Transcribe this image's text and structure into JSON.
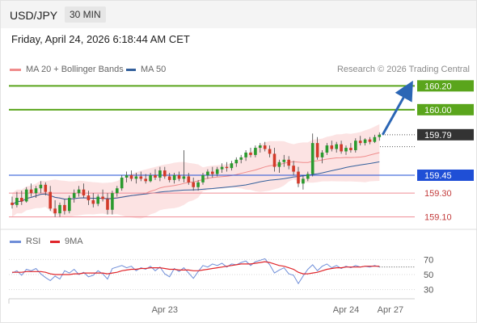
{
  "header": {
    "instrument": "USD/JPY",
    "timeframe": "30 MIN",
    "datetime": "Friday, April 24, 2026 6:18:44 AM CET"
  },
  "legend": {
    "ma20": "MA 20 + Bollinger Bands",
    "ma50": "MA 50",
    "rsi": "RSI",
    "rsi_ma": "9MA"
  },
  "credit": "Research © 2026 Trading Central",
  "colors": {
    "resistance": "#5aa51c",
    "support_blue": "#1f4fd6",
    "support_pink": "#ef8c94",
    "support_pink_text": "#c23a3a",
    "current_price_box": "#333333",
    "arrow": "#2b66b5",
    "ma20_band": "#f6a9a9",
    "ma50": "#34609c",
    "candle_up": "#2a9a2e",
    "candle_down": "#d23a2a",
    "rsi_line": "#6f8ed8",
    "rsi_ma_line": "#e0262b"
  },
  "chart_data": {
    "type": "candlestick",
    "ylim": [
      159.05,
      160.27
    ],
    "levels": [
      {
        "name": "resistance-2",
        "value": 160.2,
        "label": "160.20",
        "kind": "resistance"
      },
      {
        "name": "resistance-1",
        "value": 160.0,
        "label": "160.00",
        "kind": "resistance"
      },
      {
        "name": "current",
        "value": 159.79,
        "label": "159.79",
        "kind": "current"
      },
      {
        "name": "pivot",
        "value": 159.45,
        "label": "159.45",
        "kind": "pivot"
      },
      {
        "name": "support-1",
        "value": 159.3,
        "label": "159.30",
        "kind": "support"
      },
      {
        "name": "support-2",
        "value": 159.1,
        "label": "159.10",
        "kind": "support"
      }
    ],
    "x_ticks": [
      "Apr 23",
      "Apr 24",
      "Apr 27"
    ],
    "candles": [
      [
        159.22,
        159.27,
        159.17,
        159.2
      ],
      [
        159.2,
        159.31,
        159.18,
        159.26
      ],
      [
        159.26,
        159.32,
        159.2,
        159.23
      ],
      [
        159.23,
        159.35,
        159.22,
        159.33
      ],
      [
        159.33,
        159.38,
        159.27,
        159.3
      ],
      [
        159.3,
        159.36,
        159.26,
        159.34
      ],
      [
        159.34,
        159.4,
        159.3,
        159.37
      ],
      [
        159.37,
        159.39,
        159.28,
        159.31
      ],
      [
        159.31,
        159.36,
        159.15,
        159.17
      ],
      [
        159.17,
        159.24,
        159.1,
        159.13
      ],
      [
        159.13,
        159.22,
        159.1,
        159.2
      ],
      [
        159.2,
        159.25,
        159.12,
        159.15
      ],
      [
        159.15,
        159.28,
        159.13,
        159.26
      ],
      [
        159.26,
        159.33,
        159.22,
        159.3
      ],
      [
        159.3,
        159.36,
        159.27,
        159.33
      ],
      [
        159.33,
        159.38,
        159.26,
        159.28
      ],
      [
        159.28,
        159.32,
        159.2,
        159.24
      ],
      [
        159.24,
        159.3,
        159.18,
        159.21
      ],
      [
        159.21,
        159.29,
        159.19,
        159.27
      ],
      [
        159.27,
        159.33,
        159.23,
        159.25
      ],
      [
        159.25,
        159.3,
        159.12,
        159.16
      ],
      [
        159.16,
        159.32,
        159.12,
        159.3
      ],
      [
        159.3,
        159.36,
        159.27,
        159.34
      ],
      [
        159.34,
        159.45,
        159.32,
        159.43
      ],
      [
        159.43,
        159.48,
        159.39,
        159.45
      ],
      [
        159.45,
        159.49,
        159.4,
        159.42
      ],
      [
        159.42,
        159.47,
        159.38,
        159.44
      ],
      [
        159.44,
        159.48,
        159.4,
        159.42
      ],
      [
        159.42,
        159.46,
        159.38,
        159.4
      ],
      [
        159.4,
        159.47,
        159.39,
        159.45
      ],
      [
        159.45,
        159.5,
        159.41,
        159.43
      ],
      [
        159.43,
        159.52,
        159.4,
        159.49
      ],
      [
        159.49,
        159.52,
        159.42,
        159.44
      ],
      [
        159.44,
        159.47,
        159.39,
        159.41
      ],
      [
        159.41,
        159.47,
        159.38,
        159.45
      ],
      [
        159.45,
        159.48,
        159.4,
        159.42
      ],
      [
        159.42,
        159.66,
        159.39,
        159.44
      ],
      [
        159.44,
        159.47,
        159.37,
        159.39
      ],
      [
        159.39,
        159.43,
        159.32,
        159.35
      ],
      [
        159.35,
        159.41,
        159.32,
        159.39
      ],
      [
        159.39,
        159.47,
        159.37,
        159.45
      ],
      [
        159.45,
        159.5,
        159.42,
        159.48
      ],
      [
        159.48,
        159.52,
        159.43,
        159.46
      ],
      [
        159.46,
        159.52,
        159.44,
        159.5
      ],
      [
        159.5,
        159.55,
        159.47,
        159.52
      ],
      [
        159.52,
        159.56,
        159.48,
        159.51
      ],
      [
        159.51,
        159.57,
        159.49,
        159.55
      ],
      [
        159.55,
        159.6,
        159.52,
        159.58
      ],
      [
        159.58,
        159.62,
        159.55,
        159.6
      ],
      [
        159.6,
        159.66,
        159.57,
        159.64
      ],
      [
        159.64,
        159.68,
        159.6,
        159.62
      ],
      [
        159.62,
        159.7,
        159.6,
        159.68
      ],
      [
        159.68,
        159.72,
        159.64,
        159.7
      ],
      [
        159.7,
        159.73,
        159.65,
        159.67
      ],
      [
        159.67,
        159.7,
        159.6,
        159.63
      ],
      [
        159.63,
        159.68,
        159.48,
        159.52
      ],
      [
        159.52,
        159.58,
        159.47,
        159.56
      ],
      [
        159.56,
        159.62,
        159.52,
        159.58
      ],
      [
        159.58,
        159.61,
        159.5,
        159.53
      ],
      [
        159.53,
        159.57,
        159.45,
        159.48
      ],
      [
        159.48,
        159.52,
        159.35,
        159.38
      ],
      [
        159.38,
        159.45,
        159.33,
        159.42
      ],
      [
        159.42,
        159.48,
        159.4,
        159.46
      ],
      [
        159.46,
        159.8,
        159.44,
        159.72
      ],
      [
        159.72,
        159.77,
        159.58,
        159.6
      ],
      [
        159.6,
        159.66,
        159.55,
        159.64
      ],
      [
        159.64,
        159.72,
        159.62,
        159.7
      ],
      [
        159.7,
        159.74,
        159.65,
        159.67
      ],
      [
        159.67,
        159.73,
        159.64,
        159.71
      ],
      [
        159.71,
        159.74,
        159.63,
        159.65
      ],
      [
        159.65,
        159.7,
        159.62,
        159.68
      ],
      [
        159.68,
        159.72,
        159.64,
        159.66
      ],
      [
        159.66,
        159.76,
        159.64,
        159.74
      ],
      [
        159.74,
        159.78,
        159.7,
        159.72
      ],
      [
        159.72,
        159.76,
        159.7,
        159.75
      ],
      [
        159.75,
        159.77,
        159.71,
        159.73
      ],
      [
        159.73,
        159.79,
        159.72,
        159.77
      ],
      [
        159.77,
        159.81,
        159.74,
        159.79
      ]
    ],
    "projection": {
      "from": 159.79,
      "to": 160.2
    },
    "rsi": {
      "ylim": [
        20,
        80
      ],
      "ticks": [
        70,
        50,
        30
      ],
      "values": [
        52,
        55,
        49,
        57,
        55,
        58,
        51,
        46,
        42,
        48,
        44,
        55,
        52,
        57,
        50,
        53,
        47,
        49,
        55,
        51,
        44,
        58,
        60,
        62,
        59,
        61,
        55,
        59,
        57,
        61,
        55,
        60,
        51,
        47,
        58,
        54,
        59,
        52,
        45,
        54,
        62,
        60,
        64,
        62,
        65,
        60,
        64,
        63,
        66,
        68,
        62,
        67,
        69,
        71,
        63,
        52,
        56,
        59,
        51,
        49,
        38,
        48,
        57,
        63,
        55,
        61,
        64,
        59,
        62,
        58,
        61,
        59,
        62,
        60,
        61,
        60,
        62,
        60
      ],
      "ma": [
        53,
        53,
        53,
        54,
        54,
        54,
        54,
        53,
        51,
        50,
        50,
        50,
        50,
        51,
        51,
        52,
        52,
        52,
        52,
        52,
        51,
        52,
        53,
        55,
        56,
        57,
        57,
        58,
        58,
        59,
        59,
        59,
        58,
        57,
        57,
        56,
        56,
        56,
        55,
        55,
        56,
        57,
        58,
        59,
        60,
        61,
        62,
        63,
        64,
        64,
        64,
        65,
        66,
        67,
        66,
        64,
        62,
        61,
        59,
        57,
        53,
        51,
        51,
        52,
        53,
        55,
        57,
        58,
        59,
        59,
        60,
        60,
        60,
        60,
        61,
        61,
        61,
        61
      ]
    }
  }
}
